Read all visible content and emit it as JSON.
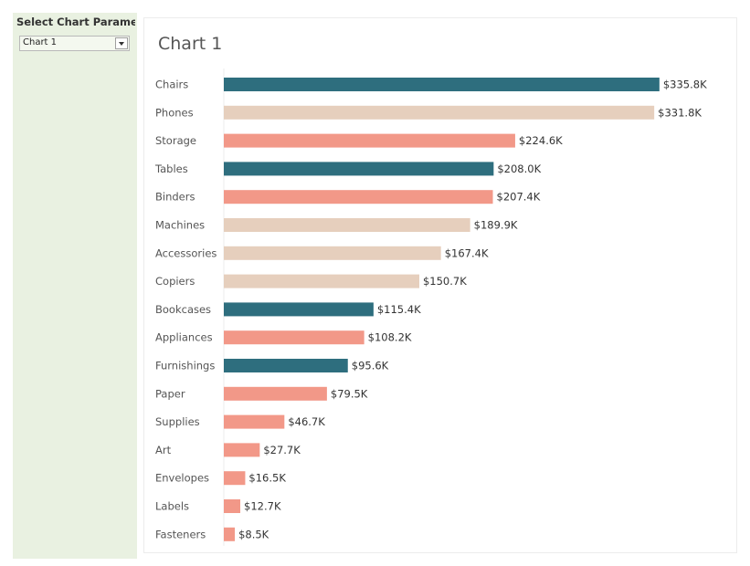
{
  "parameter": {
    "title": "Select Chart Paramet..",
    "selected": "Chart 1"
  },
  "colors": {
    "furniture": "#2e6e7e",
    "technology": "#e6cfbd",
    "office_supplies": "#f29888"
  },
  "chart_data": {
    "type": "bar",
    "orientation": "horizontal",
    "title": "Chart 1",
    "xlabel": "",
    "ylabel": "",
    "xlim": [
      0,
      345
    ],
    "grid": false,
    "categories": [
      "Chairs",
      "Phones",
      "Storage",
      "Tables",
      "Binders",
      "Machines",
      "Accessories",
      "Copiers",
      "Bookcases",
      "Appliances",
      "Furnishings",
      "Paper",
      "Supplies",
      "Art",
      "Envelopes",
      "Labels",
      "Fasteners"
    ],
    "values": [
      335.8,
      331.8,
      224.6,
      208.0,
      207.4,
      189.9,
      167.4,
      150.7,
      115.4,
      108.2,
      95.6,
      79.5,
      46.7,
      27.7,
      16.5,
      12.7,
      8.5
    ],
    "value_labels": [
      "$335.8K",
      "$331.8K",
      "$224.6K",
      "$208.0K",
      "$207.4K",
      "$189.9K",
      "$167.4K",
      "$150.7K",
      "$115.4K",
      "$108.2K",
      "$95.6K",
      "$79.5K",
      "$46.7K",
      "$27.7K",
      "$16.5K",
      "$12.7K",
      "$8.5K"
    ],
    "bar_colors": [
      "#2e6e7e",
      "#e6cfbd",
      "#f29888",
      "#2e6e7e",
      "#f29888",
      "#e6cfbd",
      "#e6cfbd",
      "#e6cfbd",
      "#2e6e7e",
      "#f29888",
      "#2e6e7e",
      "#f29888",
      "#f29888",
      "#f29888",
      "#f29888",
      "#f29888",
      "#f29888"
    ]
  }
}
